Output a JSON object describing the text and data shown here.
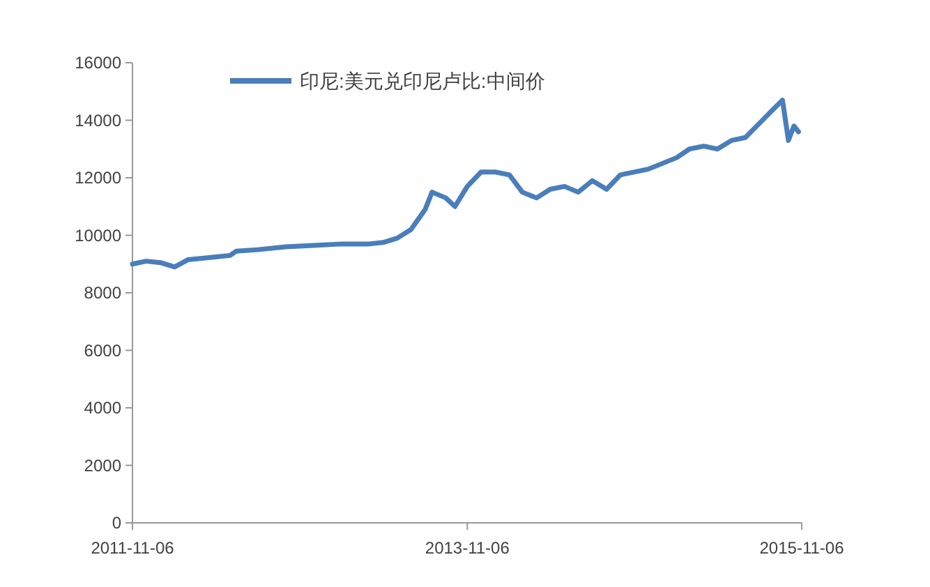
{
  "chart_data": {
    "type": "line",
    "x": [
      "2011-11-06",
      "2011-12-06",
      "2012-01-06",
      "2012-02-06",
      "2012-03-06",
      "2012-04-06",
      "2012-05-06",
      "2012-06-06",
      "2012-06-20",
      "2012-08-06",
      "2012-10-06",
      "2012-12-06",
      "2013-02-06",
      "2013-04-06",
      "2013-05-06",
      "2013-06-06",
      "2013-07-06",
      "2013-08-06",
      "2013-08-21",
      "2013-09-20",
      "2013-10-10",
      "2013-11-06",
      "2013-12-06",
      "2014-01-06",
      "2014-02-06",
      "2014-03-06",
      "2014-04-06",
      "2014-05-06",
      "2014-06-06",
      "2014-07-06",
      "2014-08-06",
      "2014-09-06",
      "2014-10-06",
      "2014-12-06",
      "2015-01-06",
      "2015-02-06",
      "2015-03-06",
      "2015-04-06",
      "2015-05-06",
      "2015-06-06",
      "2015-07-06",
      "2015-08-06",
      "2015-09-06",
      "2015-09-25",
      "2015-10-08",
      "2015-10-20",
      "2015-10-30"
    ],
    "series": [
      {
        "name": "印尼:美元兑印尼卢比:中间价",
        "color": "#4a7ebb",
        "values": [
          9000,
          9100,
          9050,
          8900,
          9150,
          9200,
          9250,
          9300,
          9450,
          9500,
          9600,
          9650,
          9700,
          9700,
          9750,
          9900,
          10200,
          10900,
          11500,
          11300,
          11000,
          11700,
          12200,
          12200,
          12100,
          11500,
          11300,
          11600,
          11700,
          11500,
          11900,
          11600,
          12100,
          12300,
          12500,
          12700,
          13000,
          13100,
          13000,
          13300,
          13400,
          13900,
          14400,
          14700,
          13300,
          13800,
          13600
        ]
      }
    ],
    "xlim": [
      "2011-11-06",
      "2015-11-06"
    ],
    "xticks": [
      {
        "value": "2011-11-06",
        "label": "2011-11-06"
      },
      {
        "value": "2013-11-06",
        "label": "2013-11-06"
      },
      {
        "value": "2015-11-06",
        "label": "2015-11-06"
      }
    ],
    "ylim": [
      0,
      16000
    ],
    "yticks": [
      0,
      2000,
      4000,
      6000,
      8000,
      10000,
      12000,
      14000,
      16000
    ],
    "legend": "top",
    "grid": false
  }
}
